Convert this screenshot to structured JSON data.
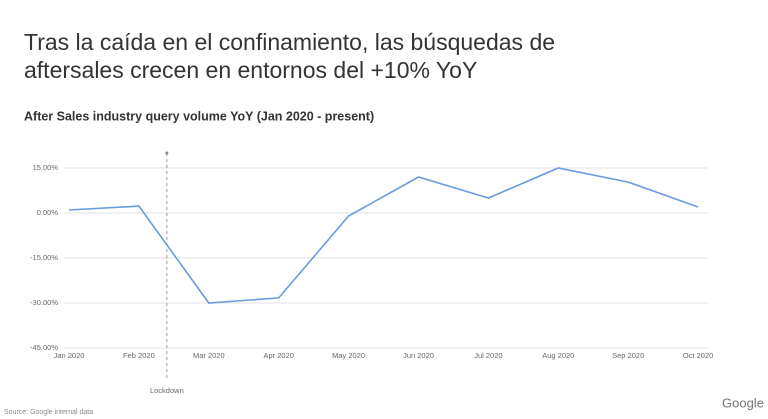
{
  "title_lines": [
    "Tras la caída en el confinamiento, las búsquedas de",
    "aftersales crecen en entornos del +10% YoY"
  ],
  "chart_data": {
    "type": "line",
    "title": "After Sales industry query volume YoY (Jan 2020 - present)",
    "categories": [
      "Jan 2020",
      "Feb 2020",
      "Mar 2020",
      "Apr 2020",
      "May 2020",
      "Jun 2020",
      "Jul 2020",
      "Aug 2020",
      "Sep 2020",
      "Oct 2020"
    ],
    "values": [
      1.0,
      2.3,
      -30,
      -28.3,
      -1,
      12,
      5,
      15,
      10.3,
      2
    ],
    "color": "#6a9be0",
    "ylim": [
      -45,
      20
    ],
    "yticks": [
      {
        "value": 15,
        "label": "15.00%"
      },
      {
        "value": 0,
        "label": "0.00%"
      },
      {
        "value": -15,
        "label": "-15.00%"
      },
      {
        "value": -30,
        "label": "-30.00%"
      },
      {
        "value": -45,
        "label": "-45.00%"
      }
    ],
    "grid": true,
    "annotation": "Lockdown"
  },
  "source": "Source: Google internal data",
  "logo": "Google"
}
